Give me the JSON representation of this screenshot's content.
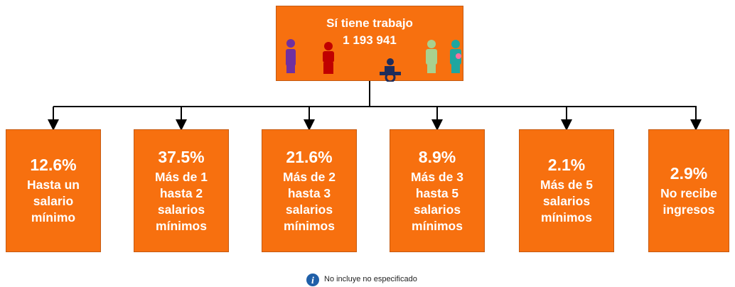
{
  "root": {
    "title": "Sí tiene trabajo",
    "value": "1 193 941"
  },
  "nodes": [
    {
      "percent": "12.6%",
      "lines": [
        "Hasta un",
        "salario",
        "mínimo"
      ]
    },
    {
      "percent": "37.5%",
      "lines": [
        "Más de 1",
        "hasta 2",
        "salarios",
        "mínimos"
      ]
    },
    {
      "percent": "21.6%",
      "lines": [
        "Más de 2",
        "hasta 3",
        "salarios",
        "mínimos"
      ]
    },
    {
      "percent": "8.9%",
      "lines": [
        "Más de 3",
        "hasta 5",
        "salarios",
        "mínimos"
      ]
    },
    {
      "percent": "2.1%",
      "lines": [
        "Más de 5",
        "salarios",
        "mínimos"
      ]
    },
    {
      "percent": "2.9%",
      "lines": [
        "No recibe",
        "ingresos"
      ]
    }
  ],
  "footnote": "No incluye no especificado"
}
